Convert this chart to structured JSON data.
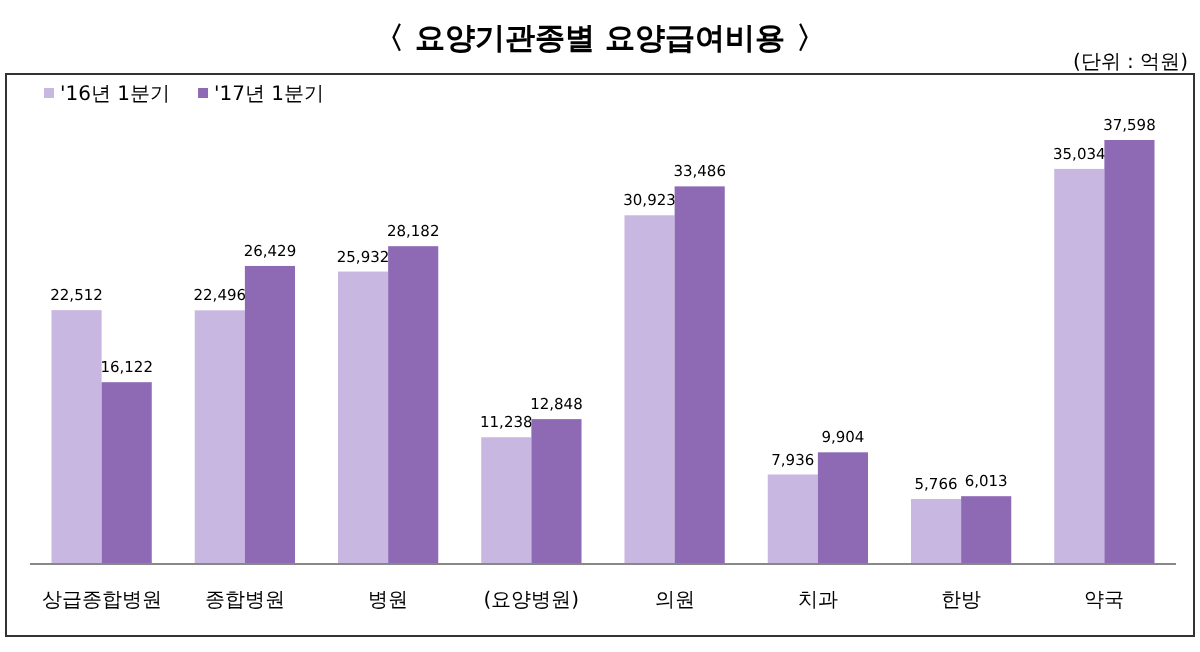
{
  "chart_data": {
    "type": "bar",
    "title": "〈 요양기관종별 요양급여비용 〉",
    "subtitle": "(단위 : 억원)",
    "categories": [
      "상급종합병원",
      "종합병원",
      "병원",
      "(요양병원)",
      "의원",
      "치과",
      "한방",
      "약국"
    ],
    "series": [
      {
        "name": "'16년 1분기",
        "color": "#c8b7e0",
        "values": [
          22512,
          22496,
          25932,
          11238,
          30923,
          7936,
          5766,
          35034
        ],
        "value_labels": [
          "22,512",
          "22,496",
          "25,932",
          "11,238",
          "30,923",
          "7,936",
          "5,766",
          "35,034"
        ]
      },
      {
        "name": "'17년 1분기",
        "color": "#8e6ab5",
        "values": [
          16122,
          26429,
          28182,
          12848,
          33486,
          9904,
          6013,
          37598
        ],
        "value_labels": [
          "16,122",
          "26,429",
          "28,182",
          "12,848",
          "33,486",
          "9,904",
          "6,013",
          "37,598"
        ]
      }
    ],
    "legend": "top left"
  }
}
